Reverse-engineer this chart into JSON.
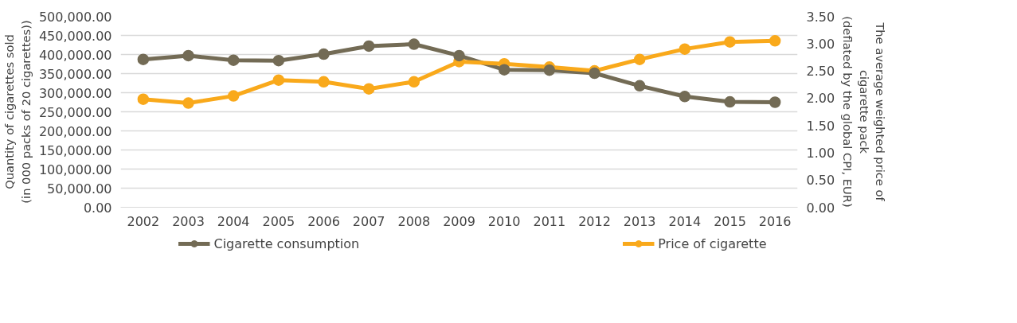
{
  "chart_data": {
    "type": "line",
    "categories": [
      "2002",
      "2003",
      "2004",
      "2005",
      "2006",
      "2007",
      "2008",
      "2009",
      "2010",
      "2011",
      "2012",
      "2013",
      "2014",
      "2015",
      "2016"
    ],
    "series": [
      {
        "name": "Cigarette consumption",
        "color": "#736b55",
        "values": [
          387000,
          397000,
          385000,
          384000,
          401000,
          422000,
          427000,
          397000,
          360000,
          359000,
          351000,
          318000,
          290000,
          276000,
          275000
        ]
      },
      {
        "name": "Price of cigarette",
        "color": "#f9a91b",
        "axis": "y2",
        "values": [
          1.98,
          1.91,
          2.04,
          2.33,
          2.3,
          2.17,
          2.3,
          2.67,
          2.63,
          2.57,
          2.5,
          2.71,
          2.9,
          3.03,
          3.05
        ]
      }
    ],
    "ylabel": "Quantity of cigarettes sold\n(in 000 packs of 20 cigarettes))",
    "y2label": "The average weighted price of\ncigarette pack\n(deflated by the global CPI, EUR)",
    "ylim": [
      0,
      500000
    ],
    "yticks": [
      {
        "value": 0,
        "label": "0.00"
      },
      {
        "value": 50000,
        "label": "50,000.00"
      },
      {
        "value": 100000,
        "label": "100,000.00"
      },
      {
        "value": 150000,
        "label": "150,000.00"
      },
      {
        "value": 200000,
        "label": "200,000.00"
      },
      {
        "value": 250000,
        "label": "250,000.00"
      },
      {
        "value": 300000,
        "label": "300,000.00"
      },
      {
        "value": 350000,
        "label": "350,000.00"
      },
      {
        "value": 400000,
        "label": "400,000.00"
      },
      {
        "value": 450000,
        "label": "450,000.00"
      },
      {
        "value": 500000,
        "label": "500,000.00"
      }
    ],
    "y2lim": [
      0,
      3.5
    ],
    "y2ticks": [
      {
        "value": 0,
        "label": "0.00"
      },
      {
        "value": 0.5,
        "label": "0.50"
      },
      {
        "value": 1,
        "label": "1.00"
      },
      {
        "value": 1.5,
        "label": "1.50"
      },
      {
        "value": 2,
        "label": "2.00"
      },
      {
        "value": 2.5,
        "label": "2.50"
      },
      {
        "value": 3,
        "label": "3.00"
      },
      {
        "value": 3.5,
        "label": "3.50"
      }
    ],
    "grid": "y",
    "legend": "bottom",
    "marker": "circle",
    "line_style": "solid"
  }
}
